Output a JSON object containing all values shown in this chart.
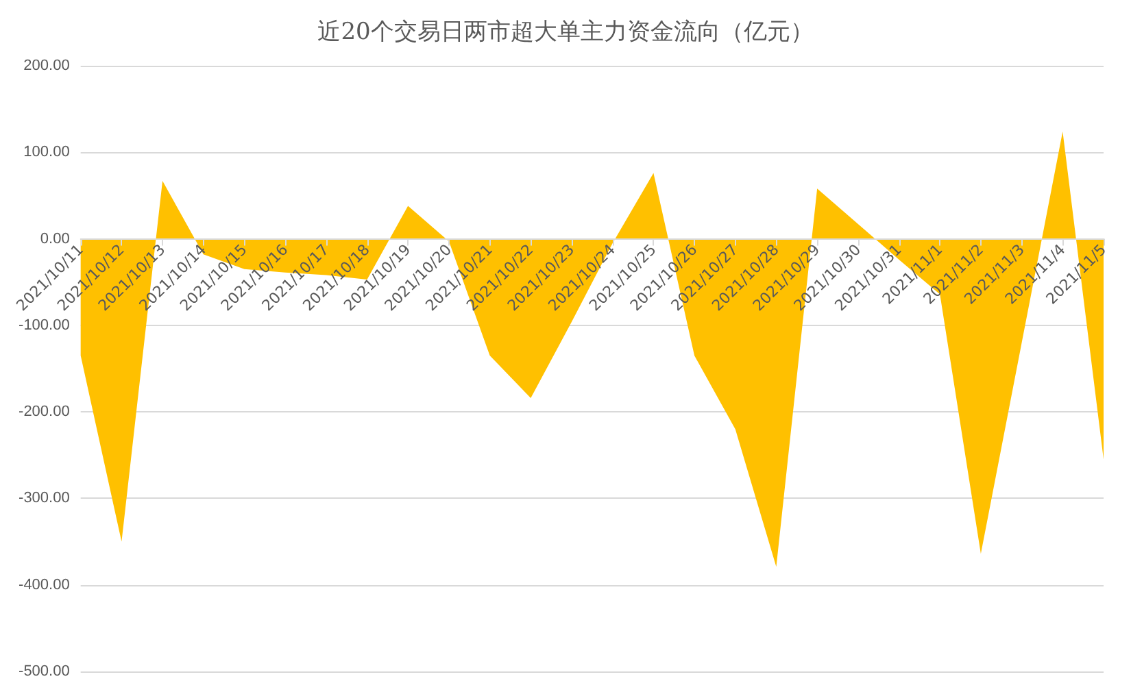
{
  "chart_data": {
    "type": "area",
    "title": "近20个交易日两市超大单主力资金流向（亿元）",
    "categories": [
      "2021/10/11",
      "2021/10/12",
      "2021/10/13",
      "2021/10/14",
      "2021/10/15",
      "2021/10/16",
      "2021/10/17",
      "2021/10/18",
      "2021/10/19",
      "2021/10/20",
      "2021/10/21",
      "2021/10/22",
      "2021/10/23",
      "2021/10/24",
      "2021/10/25",
      "2021/10/26",
      "2021/10/27",
      "2021/10/28",
      "2021/10/29",
      "2021/10/30",
      "2021/10/31",
      "2021/11/1",
      "2021/11/2",
      "2021/11/3",
      "2021/11/4",
      "2021/11/5"
    ],
    "series": [
      {
        "color": "#ffc000",
        "values": [
          -135,
          -350,
          67,
          -18,
          -35,
          -39,
          -42,
          -47,
          38,
          -3,
          -135,
          -184,
          -96,
          -5,
          76,
          -135,
          -220,
          -379,
          58,
          17,
          -24,
          -64,
          -364,
          -120,
          124,
          -255
        ]
      }
    ],
    "ylim": [
      -500,
      200
    ],
    "yticks": [
      {
        "value": -500,
        "label": "-500.00"
      },
      {
        "value": -400,
        "label": "-400.00"
      },
      {
        "value": -300,
        "label": "-300.00"
      },
      {
        "value": -200,
        "label": "-200.00"
      },
      {
        "value": -100,
        "label": "-100.00"
      },
      {
        "value": 0,
        "label": "0.00"
      },
      {
        "value": 100,
        "label": "100.00"
      },
      {
        "value": 200,
        "label": "200.00"
      }
    ],
    "grid": "y"
  }
}
